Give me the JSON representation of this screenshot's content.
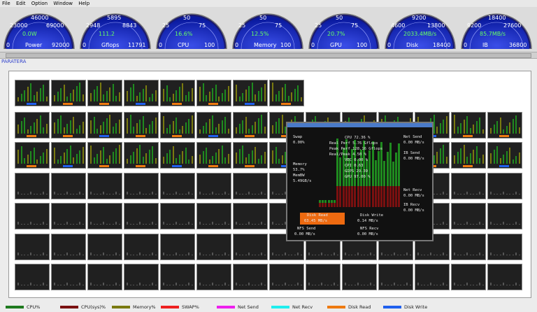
{
  "menu": [
    "File",
    "Edit",
    "Option",
    "Window",
    "Help"
  ],
  "gauges": [
    {
      "top": "46000",
      "mid_left": "23000",
      "mid_right": "69000",
      "value": "0.0W",
      "min": "0",
      "label": "Power",
      "max": "92000"
    },
    {
      "top": "5895",
      "mid_left": "2948",
      "mid_right": "8843",
      "value": "111.2",
      "min": "0",
      "label": "Gflops",
      "max": "11791"
    },
    {
      "top": "50",
      "mid_left": "25",
      "mid_right": "75",
      "value": "16.6%",
      "min": "0",
      "label": "CPU",
      "max": "100"
    },
    {
      "top": "50",
      "mid_left": "25",
      "mid_right": "75",
      "value": "12.5%",
      "min": "0",
      "label": "Memory",
      "max": "100"
    },
    {
      "top": "50",
      "mid_left": "25",
      "mid_right": "75",
      "value": "20.7%",
      "min": "0",
      "label": "GPU",
      "max": "100"
    },
    {
      "top": "9200",
      "mid_left": "4600",
      "mid_right": "13800",
      "value": "2033.4MB/s",
      "min": "0",
      "label": "Disk",
      "max": "18400"
    },
    {
      "top": "18400",
      "mid_left": "9200",
      "mid_right": "27600",
      "value": "85.7MB/s",
      "min": "0",
      "label": "IB",
      "max": "36800"
    }
  ],
  "brand": "PARATERA",
  "popup": {
    "swap_label": "Swap",
    "swap_value": "0.00%",
    "memory_label": "Memory",
    "memory_value": "53.7%",
    "membw_label": "MemBW",
    "membw_value": "5.49GB/s",
    "cpu": "CPU    72.36 %",
    "real_perf": "Real Perf   5.76 Gflops",
    "peak_perf": "Peak Perf 128.16 Gflops",
    "real_peak": "Real/Peak    4.50 %",
    "vec": "VEC        0.00 %",
    "cpi": "CPI        0.63",
    "gips": "GIPS      29.39",
    "gpu": "GPU      97.00 %",
    "net_send_label": "Net Send",
    "net_send_value": "0.00 MB/s",
    "ib_send_label": "IB Send",
    "ib_send_value": "0.00 MB/s",
    "net_recv_label": "Net Recv",
    "net_recv_value": "0.00 MB/s",
    "ib_recv_label": "IB Recv",
    "ib_recv_value": "0.00 MB/s",
    "disk_read_label": "Disk Read",
    "disk_read_value": "63.45 MB/s",
    "disk_write_label": "Disk Write",
    "disk_write_value": "0.14 MB/s",
    "nfs_send_label": "NFS Send",
    "nfs_send_value": "0.00 MB/s",
    "nfs_recv_label": "NFS Recv",
    "nfs_recv_value": "0.00 MB/s"
  },
  "legend": [
    {
      "label": "CPU%",
      "color": "#1f7a1f"
    },
    {
      "label": "CPU(sys)%",
      "color": "#7a1010"
    },
    {
      "label": "Memory%",
      "color": "#7a7a10"
    },
    {
      "label": "SWAP%",
      "color": "#ee2020"
    },
    {
      "label": "Net Send",
      "color": "#ee20ee"
    },
    {
      "label": "Net Recv",
      "color": "#20eeee"
    },
    {
      "label": "Disk Read",
      "color": "#ee7a10"
    },
    {
      "label": "Disk Write",
      "color": "#2060ee"
    }
  ]
}
